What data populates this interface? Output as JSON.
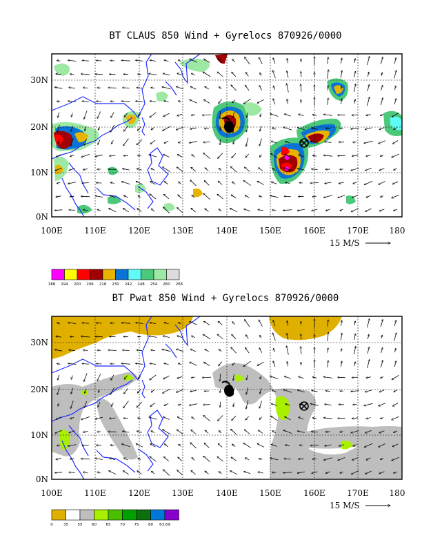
{
  "colors": {
    "coast": "#1f2fff",
    "top_levels": [
      "#ff00ff",
      "#ffff00",
      "#ff0000",
      "#a00000",
      "#e8b400",
      "#0a73d6",
      "#5ffcf5",
      "#4cc87a",
      "#9de8a3",
      "#dcdcdc"
    ],
    "bottom_levels": [
      "#e0b000",
      "#ffffff",
      "#bebebe",
      "#a8f000",
      "#48c000",
      "#00a000",
      "#0d6e0d",
      "#0078d8",
      "#8800cc"
    ]
  },
  "panels": [
    {
      "title": "BT CLAUS 850 Wind + Gyrelocs 870926/0000",
      "x_ticks": [
        "100E",
        "110E",
        "120E",
        "130E",
        "140E",
        "150E",
        "160E",
        "170E",
        "180"
      ],
      "y_ticks": [
        "0N",
        "10N",
        "20N",
        "30N"
      ],
      "ref_vector": "15 M/S",
      "colorbar": [
        "188",
        "194",
        "200",
        "206",
        "218",
        "230",
        "242",
        "248",
        "254",
        "260",
        "266"
      ],
      "gyre_markers": [
        {
          "type": "filled-cyclone",
          "lon": 140.5,
          "lat": 20.5
        },
        {
          "type": "circled-x",
          "lon": 158,
          "lat": 16.8
        }
      ]
    },
    {
      "title": "BT Pwat 850 Wind + Gyrelocs 870926/0000",
      "x_ticks": [
        "100E",
        "110E",
        "120E",
        "130E",
        "140E",
        "150E",
        "160E",
        "170E",
        "180"
      ],
      "y_ticks": [
        "0N",
        "10N",
        "20N",
        "30N"
      ],
      "ref_vector": "15 M/S",
      "colorbar": [
        "0",
        "35",
        "55",
        "60",
        "65",
        "70",
        "75",
        "80",
        "63.69"
      ],
      "gyre_markers": [
        {
          "type": "cyclone-symbol",
          "lon": 140.5,
          "lat": 19.5
        },
        {
          "type": "circled-x",
          "lon": 158,
          "lat": 16.5
        }
      ]
    }
  ],
  "map_extent": {
    "lon": [
      100,
      180
    ],
    "lat": [
      0,
      36
    ]
  }
}
